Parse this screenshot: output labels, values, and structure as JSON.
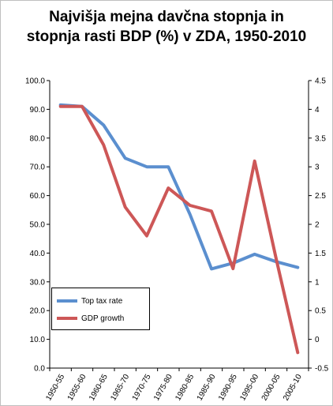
{
  "chart_data": {
    "type": "line",
    "title_line1": "Najvišja mejna davčna stopnja  in",
    "title_line2": "stopnja rasti BDP (%) v ZDA, 1950-2010",
    "categories": [
      "1950-55",
      "1955-60",
      "1960-65",
      "1965-70",
      "1970-75",
      "1975-80",
      "1980-85",
      "1985-90",
      "1990-95",
      "1995-00",
      "2000-05",
      "2005-10"
    ],
    "left_axis": {
      "min": 0,
      "max": 100,
      "step": 10,
      "tick_labels": [
        "0.0",
        "10.0",
        "20.0",
        "30.0",
        "40.0",
        "50.0",
        "60.0",
        "70.0",
        "80.0",
        "90.0",
        "100.0"
      ]
    },
    "right_axis": {
      "min": -0.5,
      "max": 4.5,
      "step": 0.5,
      "tick_labels": [
        "-0.5",
        "0",
        "0.5",
        "1",
        "1.5",
        "2",
        "2.5",
        "3",
        "3.5",
        "4",
        "4.5"
      ]
    },
    "series": [
      {
        "name": "Top tax rate",
        "axis": "left",
        "color": "#5b8fcf",
        "values": [
          91.5,
          91.0,
          84.5,
          73.0,
          70.0,
          70.0,
          53.5,
          34.5,
          36.5,
          39.6,
          37.0,
          35.0
        ]
      },
      {
        "name": "GDP growth",
        "axis": "right",
        "color": "#cd5757",
        "values": [
          4.05,
          4.05,
          3.38,
          2.3,
          1.8,
          2.63,
          2.33,
          2.23,
          1.23,
          3.1,
          1.4,
          -0.23
        ]
      }
    ],
    "legend_position": "bottom-left",
    "grid": false
  }
}
